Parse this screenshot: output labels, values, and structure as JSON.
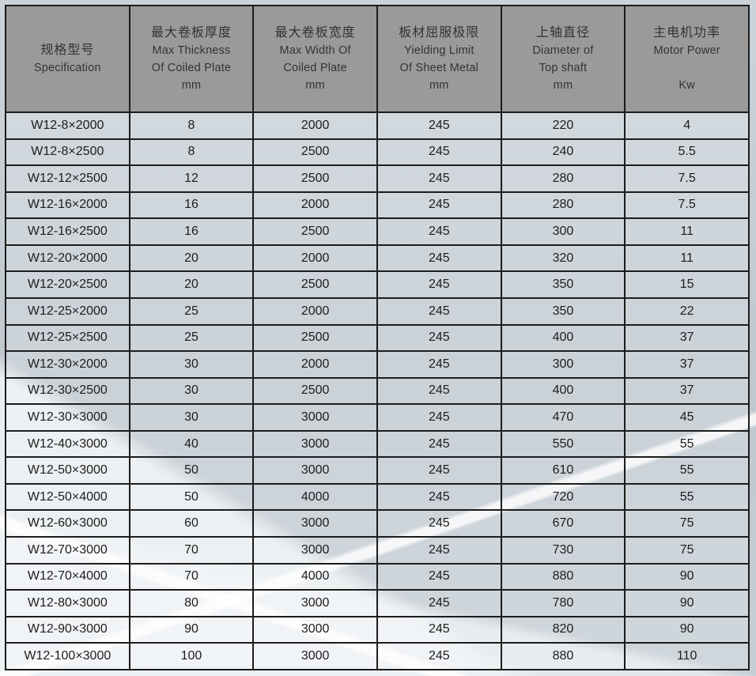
{
  "colors": {
    "page_bg": "#c5ced5",
    "header_bg": "#9b9a9a",
    "header_text": "#333333",
    "cell_text": "#1d1d1d",
    "grid_line": "#1c1c1c",
    "light_ray": "#f0f3f5"
  },
  "chart_data": {
    "type": "table",
    "columns": [
      {
        "lines": [
          "规格型号",
          "Specification"
        ]
      },
      {
        "lines": [
          "最大卷板厚度",
          "Max Thickness",
          "Of Coiled Plate",
          "mm"
        ]
      },
      {
        "lines": [
          "最大卷板宽度",
          "Max Width  Of",
          "Coiled Plate",
          "mm"
        ]
      },
      {
        "lines": [
          "板材屈服极限",
          "Yielding Limit",
          "Of  Sheet Metal",
          "mm"
        ]
      },
      {
        "lines": [
          "上轴直径",
          "Diameter of",
          "Top shaft",
          "mm"
        ]
      },
      {
        "lines": [
          "主电机功率",
          "Motor Power",
          "",
          "Kw"
        ]
      }
    ],
    "column_keys": [
      "specification",
      "max_thickness_mm",
      "max_width_mm",
      "yielding_limit_mm",
      "top_shaft_diameter_mm",
      "motor_power_kw"
    ],
    "rows": [
      [
        "W12-8×2000",
        "8",
        "2000",
        "245",
        "220",
        "4"
      ],
      [
        "W12-8×2500",
        "8",
        "2500",
        "245",
        "240",
        "5.5"
      ],
      [
        "W12-12×2500",
        "12",
        "2500",
        "245",
        "280",
        "7.5"
      ],
      [
        "W12-16×2000",
        "16",
        "2000",
        "245",
        "280",
        "7.5"
      ],
      [
        "W12-16×2500",
        "16",
        "2500",
        "245",
        "300",
        "11"
      ],
      [
        "W12-20×2000",
        "20",
        "2000",
        "245",
        "320",
        "11"
      ],
      [
        "W12-20×2500",
        "20",
        "2500",
        "245",
        "350",
        "15"
      ],
      [
        "W12-25×2000",
        "25",
        "2000",
        "245",
        "350",
        "22"
      ],
      [
        "W12-25×2500",
        "25",
        "2500",
        "245",
        "400",
        "37"
      ],
      [
        "W12-30×2000",
        "30",
        "2000",
        "245",
        "300",
        "37"
      ],
      [
        "W12-30×2500",
        "30",
        "2500",
        "245",
        "400",
        "37"
      ],
      [
        "W12-30×3000",
        "30",
        "3000",
        "245",
        "470",
        "45"
      ],
      [
        "W12-40×3000",
        "40",
        "3000",
        "245",
        "550",
        "55"
      ],
      [
        "W12-50×3000",
        "50",
        "3000",
        "245",
        "610",
        "55"
      ],
      [
        "W12-50×4000",
        "50",
        "4000",
        "245",
        "720",
        "55"
      ],
      [
        "W12-60×3000",
        "60",
        "3000",
        "245",
        "670",
        "75"
      ],
      [
        "W12-70×3000",
        "70",
        "3000",
        "245",
        "730",
        "75"
      ],
      [
        "W12-70×4000",
        "70",
        "4000",
        "245",
        "880",
        "90"
      ],
      [
        "W12-80×3000",
        "80",
        "3000",
        "245",
        "780",
        "90"
      ],
      [
        "W12-90×3000",
        "90",
        "3000",
        "245",
        "820",
        "90"
      ],
      [
        "W12-100×3000",
        "100",
        "3000",
        "245",
        "880",
        "110"
      ]
    ]
  }
}
